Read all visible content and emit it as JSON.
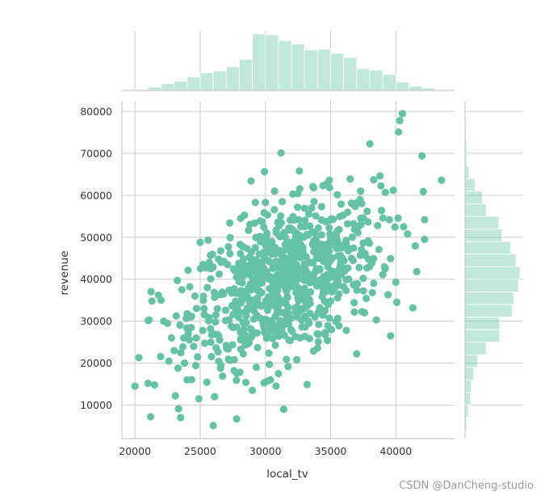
{
  "watermark": "CSDN @DanCheng-studio",
  "chart_data": {
    "type": "scatter",
    "title": "",
    "xlabel": "local_tv",
    "ylabel": "revenue",
    "xlim": [
      19000,
      44500
    ],
    "ylim": [
      2000,
      82500
    ],
    "xticks": [
      20000,
      25000,
      30000,
      35000,
      40000
    ],
    "yticks": [
      10000,
      20000,
      30000,
      40000,
      50000,
      60000,
      70000,
      80000
    ],
    "grid": true,
    "color": "#66c2a5",
    "histogram_alpha": 0.4,
    "top_histogram": {
      "bin_edges": [
        20000,
        21000,
        22000,
        23000,
        24000,
        25000,
        26000,
        27000,
        28000,
        29000,
        30000,
        31000,
        32000,
        33000,
        34000,
        35000,
        36000,
        37000,
        38000,
        39000,
        40000,
        41000,
        42000,
        43000
      ],
      "heights": [
        0.8,
        4,
        8,
        11,
        16,
        21,
        23,
        28,
        37,
        67,
        66,
        59,
        55,
        48,
        49,
        44,
        39,
        26,
        24,
        19,
        10,
        5,
        3
      ]
    },
    "right_histogram": {
      "bin_edges": [
        4000,
        7000,
        10000,
        13000,
        16000,
        19000,
        22000,
        25000,
        28000,
        31000,
        34000,
        37000,
        40000,
        43000,
        46000,
        49000,
        52000,
        55000,
        58000,
        61000,
        64000,
        67000,
        70000,
        73000,
        76000,
        79000
      ],
      "heights": [
        2,
        4,
        7,
        8,
        11,
        16,
        27,
        44,
        44,
        60,
        62,
        68,
        70,
        65,
        58,
        47,
        43,
        27,
        22,
        13,
        5,
        2,
        2,
        1,
        1
      ]
    },
    "points": [
      [
        20000,
        14500
      ],
      [
        20300,
        21300
      ],
      [
        21000,
        15200
      ],
      [
        21200,
        7200
      ],
      [
        21300,
        34800
      ],
      [
        21500,
        14800
      ],
      [
        21800,
        36200
      ],
      [
        22000,
        35000
      ],
      [
        22200,
        30000
      ],
      [
        22500,
        29500
      ],
      [
        22600,
        20500
      ],
      [
        22800,
        26000
      ],
      [
        23000,
        23000
      ],
      [
        23100,
        12200
      ],
      [
        23300,
        18800
      ],
      [
        23500,
        7000
      ],
      [
        23600,
        37500
      ],
      [
        23800,
        20000
      ],
      [
        24000,
        16000
      ],
      [
        24200,
        38200
      ],
      [
        24300,
        31000
      ],
      [
        24500,
        24000
      ],
      [
        24600,
        36000
      ],
      [
        24800,
        21500
      ],
      [
        24900,
        11500
      ],
      [
        25000,
        48800
      ],
      [
        25200,
        27800
      ],
      [
        25300,
        33000
      ],
      [
        25600,
        49300
      ],
      [
        25700,
        44000
      ],
      [
        25800,
        40100
      ],
      [
        26000,
        5100
      ],
      [
        26100,
        12000
      ],
      [
        26200,
        31500
      ],
      [
        26400,
        44800
      ],
      [
        26600,
        19500
      ],
      [
        26800,
        36500
      ],
      [
        27000,
        24200
      ],
      [
        27100,
        43500
      ],
      [
        27300,
        49900
      ],
      [
        27500,
        28500
      ],
      [
        27600,
        18200
      ],
      [
        27800,
        34100
      ],
      [
        28000,
        41000
      ],
      [
        28100,
        54500
      ],
      [
        28300,
        22200
      ],
      [
        28500,
        15400
      ],
      [
        28600,
        47300
      ],
      [
        28700,
        38000
      ],
      [
        28900,
        63400
      ],
      [
        29000,
        13500
      ],
      [
        29100,
        30500
      ],
      [
        29300,
        44500
      ],
      [
        29400,
        23700
      ],
      [
        29600,
        53900
      ],
      [
        29700,
        36800
      ],
      [
        29900,
        15300
      ],
      [
        30000,
        58300
      ],
      [
        30100,
        41800
      ],
      [
        30200,
        27100
      ],
      [
        30300,
        19700
      ],
      [
        30500,
        49000
      ],
      [
        30600,
        35400
      ],
      [
        30700,
        61000
      ],
      [
        30900,
        31900
      ],
      [
        31000,
        17500
      ],
      [
        31200,
        70100
      ],
      [
        31300,
        44100
      ],
      [
        31400,
        9000
      ],
      [
        31600,
        38700
      ],
      [
        31800,
        52200
      ],
      [
        31900,
        25400
      ],
      [
        32000,
        47000
      ],
      [
        32100,
        60300
      ],
      [
        32300,
        33200
      ],
      [
        32400,
        20800
      ],
      [
        32600,
        65800
      ],
      [
        32700,
        41500
      ],
      [
        32800,
        28600
      ],
      [
        33000,
        56900
      ],
      [
        33100,
        36500
      ],
      [
        33200,
        14900
      ],
      [
        33400,
        52700
      ],
      [
        33500,
        44000
      ],
      [
        33700,
        61800
      ],
      [
        33800,
        31000
      ],
      [
        34000,
        23600
      ],
      [
        34200,
        48300
      ],
      [
        34300,
        57300
      ],
      [
        34400,
        39400
      ],
      [
        34600,
        26700
      ],
      [
        34800,
        45800
      ],
      [
        34900,
        63600
      ],
      [
        35000,
        34800
      ],
      [
        35200,
        54300
      ],
      [
        35400,
        29900
      ],
      [
        35500,
        49300
      ],
      [
        35700,
        42600
      ],
      [
        35800,
        57900
      ],
      [
        36000,
        38200
      ],
      [
        36200,
        27800
      ],
      [
        36300,
        53200
      ],
      [
        36500,
        63900
      ],
      [
        36600,
        45000
      ],
      [
        36800,
        34400
      ],
      [
        37000,
        22200
      ],
      [
        37100,
        51100
      ],
      [
        37300,
        61000
      ],
      [
        37500,
        40200
      ],
      [
        37600,
        32000
      ],
      [
        37800,
        56200
      ],
      [
        37900,
        44800
      ],
      [
        38000,
        72300
      ],
      [
        38200,
        36800
      ],
      [
        38300,
        63700
      ],
      [
        38500,
        30300
      ],
      [
        38600,
        52800
      ],
      [
        38700,
        47100
      ],
      [
        38900,
        56400
      ],
      [
        39000,
        41100
      ],
      [
        39200,
        60700
      ],
      [
        39400,
        36300
      ],
      [
        39500,
        54200
      ],
      [
        39800,
        61200
      ],
      [
        40000,
        39300
      ],
      [
        40200,
        75100
      ],
      [
        40300,
        77800
      ],
      [
        40500,
        79500
      ],
      [
        40600,
        52500
      ],
      [
        40900,
        50800
      ],
      [
        41600,
        41800
      ],
      [
        42000,
        69400
      ],
      [
        42100,
        60900
      ],
      [
        42200,
        54200
      ],
      [
        42200,
        49500
      ],
      [
        43500,
        63600
      ]
    ]
  }
}
